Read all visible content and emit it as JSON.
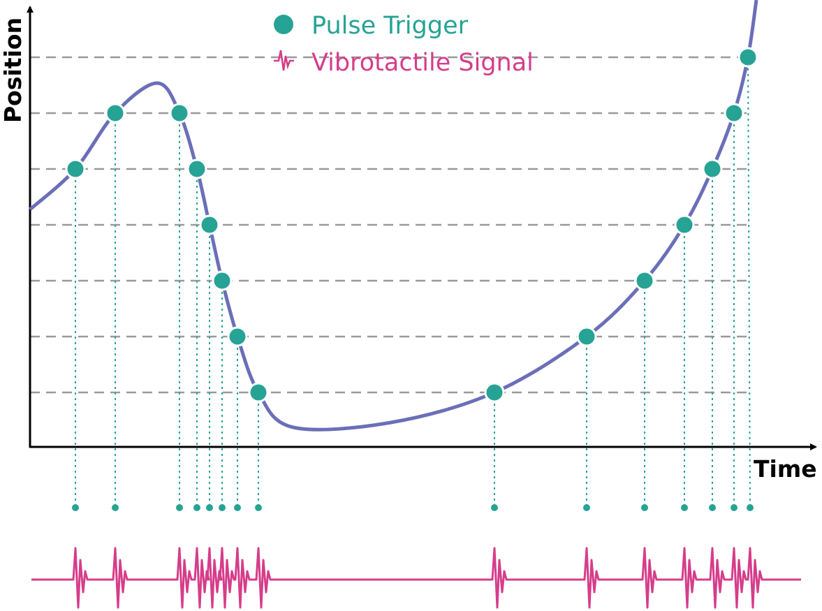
{
  "axes": {
    "y_label": "Position",
    "x_label": "Time"
  },
  "legend": {
    "pulse_trigger": "Pulse Trigger",
    "vibrotactile_signal": "Vibrotactile Signal"
  },
  "colors": {
    "curve": "#6b6fb8",
    "pulse": "#26a394",
    "signal": "#d63d8a",
    "grid": "#999999",
    "axis": "#000000"
  },
  "icons": {
    "pulse": "filled-circle-icon",
    "signal": "waveform-icon"
  }
}
